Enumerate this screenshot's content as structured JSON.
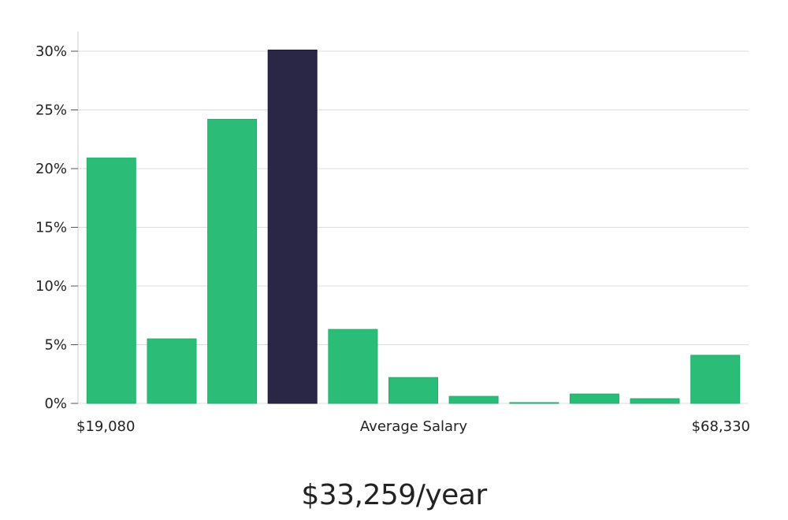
{
  "chart_data": {
    "type": "bar",
    "title": "",
    "ylabel": "",
    "xlabel": "Average Salary",
    "x_range_labels": {
      "min": "$19,080",
      "max": "$68,330"
    },
    "ylim": [
      0,
      30
    ],
    "yticks": [
      0,
      5,
      10,
      15,
      20,
      25,
      30
    ],
    "ytick_labels": [
      "0%",
      "5%",
      "10%",
      "15%",
      "20%",
      "25%",
      "30%"
    ],
    "grid": true,
    "values": [
      20.9,
      5.5,
      24.2,
      30.1,
      6.3,
      2.2,
      0.6,
      0.05,
      0.8,
      0.4,
      4.1
    ],
    "highlight_index": 3,
    "colors": {
      "bar": "#2bbd77",
      "bar_border": "#1fae68",
      "highlight": "#2a2746",
      "grid": "#dcdcdc",
      "axis": "#cccccc"
    }
  },
  "salary_display": "$33,259/year"
}
